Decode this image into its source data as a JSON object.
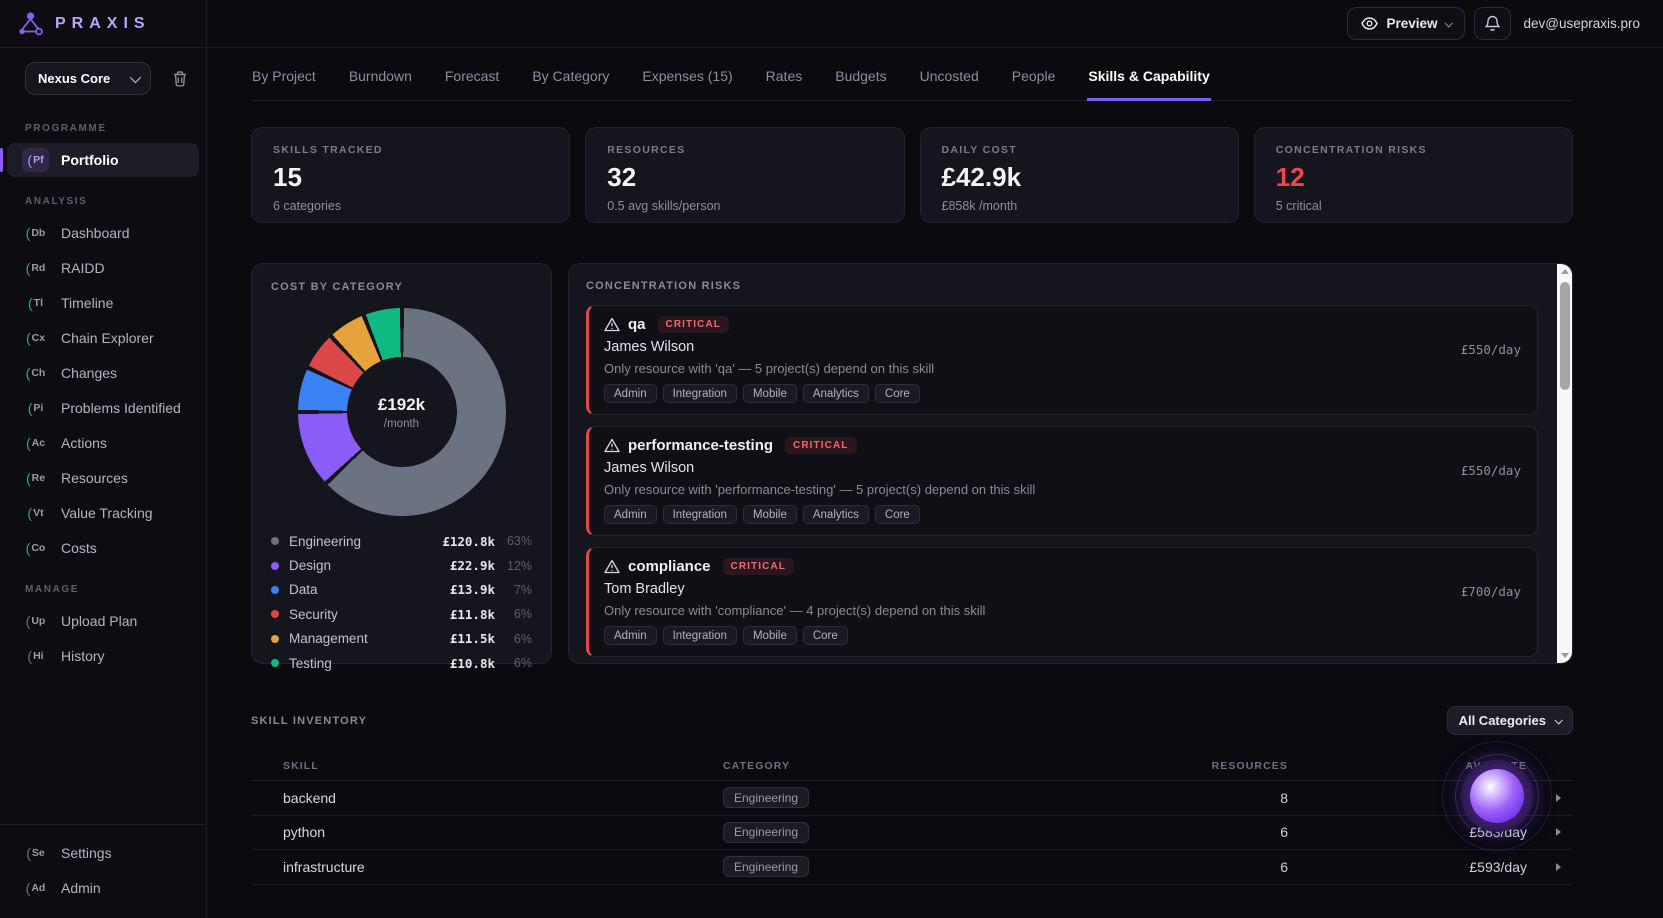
{
  "brand": "PRAXIS",
  "topbar": {
    "preview_label": "Preview",
    "email": "dev@usepraxis.pro"
  },
  "sidebar": {
    "project_select": "Nexus Core",
    "programme": {
      "label": "PROGRAMME",
      "items": [
        {
          "abbr": "Pf",
          "label": "Portfolio"
        }
      ]
    },
    "analysis": {
      "label": "ANALYSIS",
      "items": [
        {
          "abbr": "Db",
          "label": "Dashboard"
        },
        {
          "abbr": "Rd",
          "label": "RAIDD"
        },
        {
          "abbr": "Tl",
          "label": "Timeline"
        },
        {
          "abbr": "Cx",
          "label": "Chain Explorer"
        },
        {
          "abbr": "Ch",
          "label": "Changes"
        },
        {
          "abbr": "Pi",
          "label": "Problems Identified"
        },
        {
          "abbr": "Ac",
          "label": "Actions"
        },
        {
          "abbr": "Re",
          "label": "Resources"
        },
        {
          "abbr": "Vt",
          "label": "Value Tracking"
        },
        {
          "abbr": "Co",
          "label": "Costs"
        }
      ]
    },
    "manage": {
      "label": "MANAGE",
      "items": [
        {
          "abbr": "Up",
          "label": "Upload Plan"
        },
        {
          "abbr": "Hi",
          "label": "History"
        }
      ]
    },
    "footer": {
      "items": [
        {
          "abbr": "Se",
          "label": "Settings"
        },
        {
          "abbr": "Ad",
          "label": "Admin"
        }
      ]
    }
  },
  "tabs": [
    {
      "label": "By Project"
    },
    {
      "label": "Burndown"
    },
    {
      "label": "Forecast"
    },
    {
      "label": "By Category"
    },
    {
      "label": "Expenses (15)"
    },
    {
      "label": "Rates"
    },
    {
      "label": "Budgets"
    },
    {
      "label": "Uncosted"
    },
    {
      "label": "People"
    },
    {
      "label": "Skills & Capability",
      "active": true
    }
  ],
  "stats": [
    {
      "label": "SKILLS TRACKED",
      "value": "15",
      "sub": "6 categories"
    },
    {
      "label": "RESOURCES",
      "value": "32",
      "sub": "0.5 avg skills/person"
    },
    {
      "label": "DAILY COST",
      "value": "£42.9k",
      "sub": "£858k /month"
    },
    {
      "label": "CONCENTRATION RISKS",
      "value": "12",
      "sub": "5 critical",
      "value_color": "#ef4848"
    }
  ],
  "cost_by_category": {
    "title": "COST BY CATEGORY",
    "center_value": "£192k",
    "center_sub": "/month",
    "chart_data": {
      "type": "pie",
      "title": "COST BY CATEGORY",
      "center_label": "£192k /month",
      "categories": [
        "Engineering",
        "Design",
        "Data",
        "Security",
        "Management",
        "Testing"
      ],
      "values_monthly_gbp_k": [
        120.8,
        22.9,
        13.9,
        11.8,
        11.5,
        10.8
      ],
      "percents": [
        63,
        12,
        7,
        6,
        6,
        6
      ],
      "colors": [
        "#6b7280",
        "#8b5cf6",
        "#3b82f6",
        "#dc4747",
        "#e6a23c",
        "#10b981"
      ],
      "donut": true,
      "start_angle_deg": 0,
      "direction": "clockwise"
    },
    "legend": [
      {
        "name": "Engineering",
        "value": "£120.8k",
        "pct": "63%"
      },
      {
        "name": "Design",
        "value": "£22.9k",
        "pct": "12%"
      },
      {
        "name": "Data",
        "value": "£13.9k",
        "pct": "7%"
      },
      {
        "name": "Security",
        "value": "£11.8k",
        "pct": "6%"
      },
      {
        "name": "Management",
        "value": "£11.5k",
        "pct": "6%"
      },
      {
        "name": "Testing",
        "value": "£10.8k",
        "pct": "6%"
      }
    ]
  },
  "risks": {
    "title": "CONCENTRATION RISKS",
    "items": [
      {
        "skill": "qa",
        "severity": "CRITICAL",
        "person": "James Wilson",
        "rate": "£550/day",
        "desc": "Only resource with 'qa' — 5 project(s) depend on this skill",
        "tags": [
          "Admin",
          "Integration",
          "Mobile",
          "Analytics",
          "Core"
        ]
      },
      {
        "skill": "performance-testing",
        "severity": "CRITICAL",
        "person": "James Wilson",
        "rate": "£550/day",
        "desc": "Only resource with 'performance-testing' — 5 project(s) depend on this skill",
        "tags": [
          "Admin",
          "Integration",
          "Mobile",
          "Analytics",
          "Core"
        ]
      },
      {
        "skill": "compliance",
        "severity": "CRITICAL",
        "person": "Tom Bradley",
        "rate": "£700/day",
        "desc": "Only resource with 'compliance' — 4 project(s) depend on this skill",
        "tags": [
          "Admin",
          "Integration",
          "Mobile",
          "Core"
        ]
      }
    ]
  },
  "skill_inventory": {
    "title": "SKILL INVENTORY",
    "filter_label": "All Categories",
    "headers": {
      "skill": "SKILL",
      "category": "CATEGORY",
      "resources": "RESOURCES",
      "avg_rate": "AVG RATE"
    },
    "rows": [
      {
        "skill": "backend",
        "category": "Engineering",
        "resources": "8",
        "avg_rate": "£593/day"
      },
      {
        "skill": "python",
        "category": "Engineering",
        "resources": "6",
        "avg_rate": "£583/day"
      },
      {
        "skill": "infrastructure",
        "category": "Engineering",
        "resources": "6",
        "avg_rate": "£593/day"
      }
    ]
  }
}
